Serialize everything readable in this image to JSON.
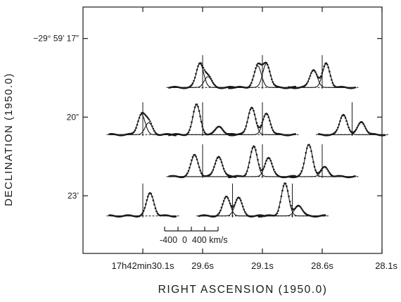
{
  "chart_data": {
    "type": "line",
    "xlabel": "RIGHT ASCENSION (1950.0)",
    "ylabel": "DECLINATION (1950.0)",
    "x_tick_labels": [
      "17h42min30.1s",
      "29.6s",
      "29.1s",
      "28.6s",
      "28.1s"
    ],
    "x_tick_values": [
      30.1,
      29.6,
      29.1,
      28.6,
      28.1
    ],
    "xlim": [
      30.6,
      28.1
    ],
    "y_tick_labels": [
      "−29° 59’ 17”",
      "20”",
      "23’"
    ],
    "y_tick_values": [
      17,
      20,
      23
    ],
    "ylim": [
      15.8,
      25.2
    ],
    "grid": false,
    "velocity_scale": {
      "label": "-400  0  400 km/s",
      "range": [
        -400,
        400
      ]
    },
    "series": [
      {
        "ra": 29.6,
        "dec": 18.6,
        "peaks": [
          [
            -40,
            1.0
          ],
          [
            80,
            0.45
          ]
        ]
      },
      {
        "ra": 29.1,
        "dec": 18.6,
        "peaks": [
          [
            -70,
            0.9
          ],
          [
            60,
            1.0
          ]
        ]
      },
      {
        "ra": 28.6,
        "dec": 18.6,
        "peaks": [
          [
            -130,
            0.75
          ],
          [
            60,
            1.0
          ]
        ]
      },
      {
        "ra": 30.1,
        "dec": 20.4,
        "peaks": [
          [
            -20,
            0.85
          ],
          [
            90,
            0.5
          ]
        ]
      },
      {
        "ra": 29.6,
        "dec": 20.4,
        "peaks": [
          [
            -90,
            1.25
          ],
          [
            250,
            0.35
          ]
        ]
      },
      {
        "ra": 29.1,
        "dec": 20.4,
        "peaks": [
          [
            -160,
            1.15
          ],
          [
            60,
            0.9
          ]
        ]
      },
      {
        "ra": 28.35,
        "dec": 20.4,
        "peaks": [
          [
            -130,
            0.85
          ],
          [
            140,
            0.55
          ]
        ]
      },
      {
        "ra": 29.6,
        "dec": 22.0,
        "peaks": [
          [
            -120,
            0.9
          ],
          [
            240,
            0.85
          ]
        ]
      },
      {
        "ra": 29.1,
        "dec": 22.0,
        "peaks": [
          [
            -130,
            1.25
          ],
          [
            90,
            0.8
          ]
        ]
      },
      {
        "ra": 28.6,
        "dec": 22.0,
        "peaks": [
          [
            -200,
            1.35
          ],
          [
            40,
            0.4
          ]
        ]
      },
      {
        "ra": 30.1,
        "dec": 23.5,
        "peaks": [
          [
            110,
            0.95
          ]
        ]
      },
      {
        "ra": 29.35,
        "dec": 23.5,
        "peaks": [
          [
            -90,
            0.8
          ],
          [
            90,
            0.75
          ]
        ]
      },
      {
        "ra": 28.85,
        "dec": 23.5,
        "peaks": [
          [
            -110,
            1.35
          ],
          [
            90,
            0.45
          ]
        ]
      }
    ]
  }
}
